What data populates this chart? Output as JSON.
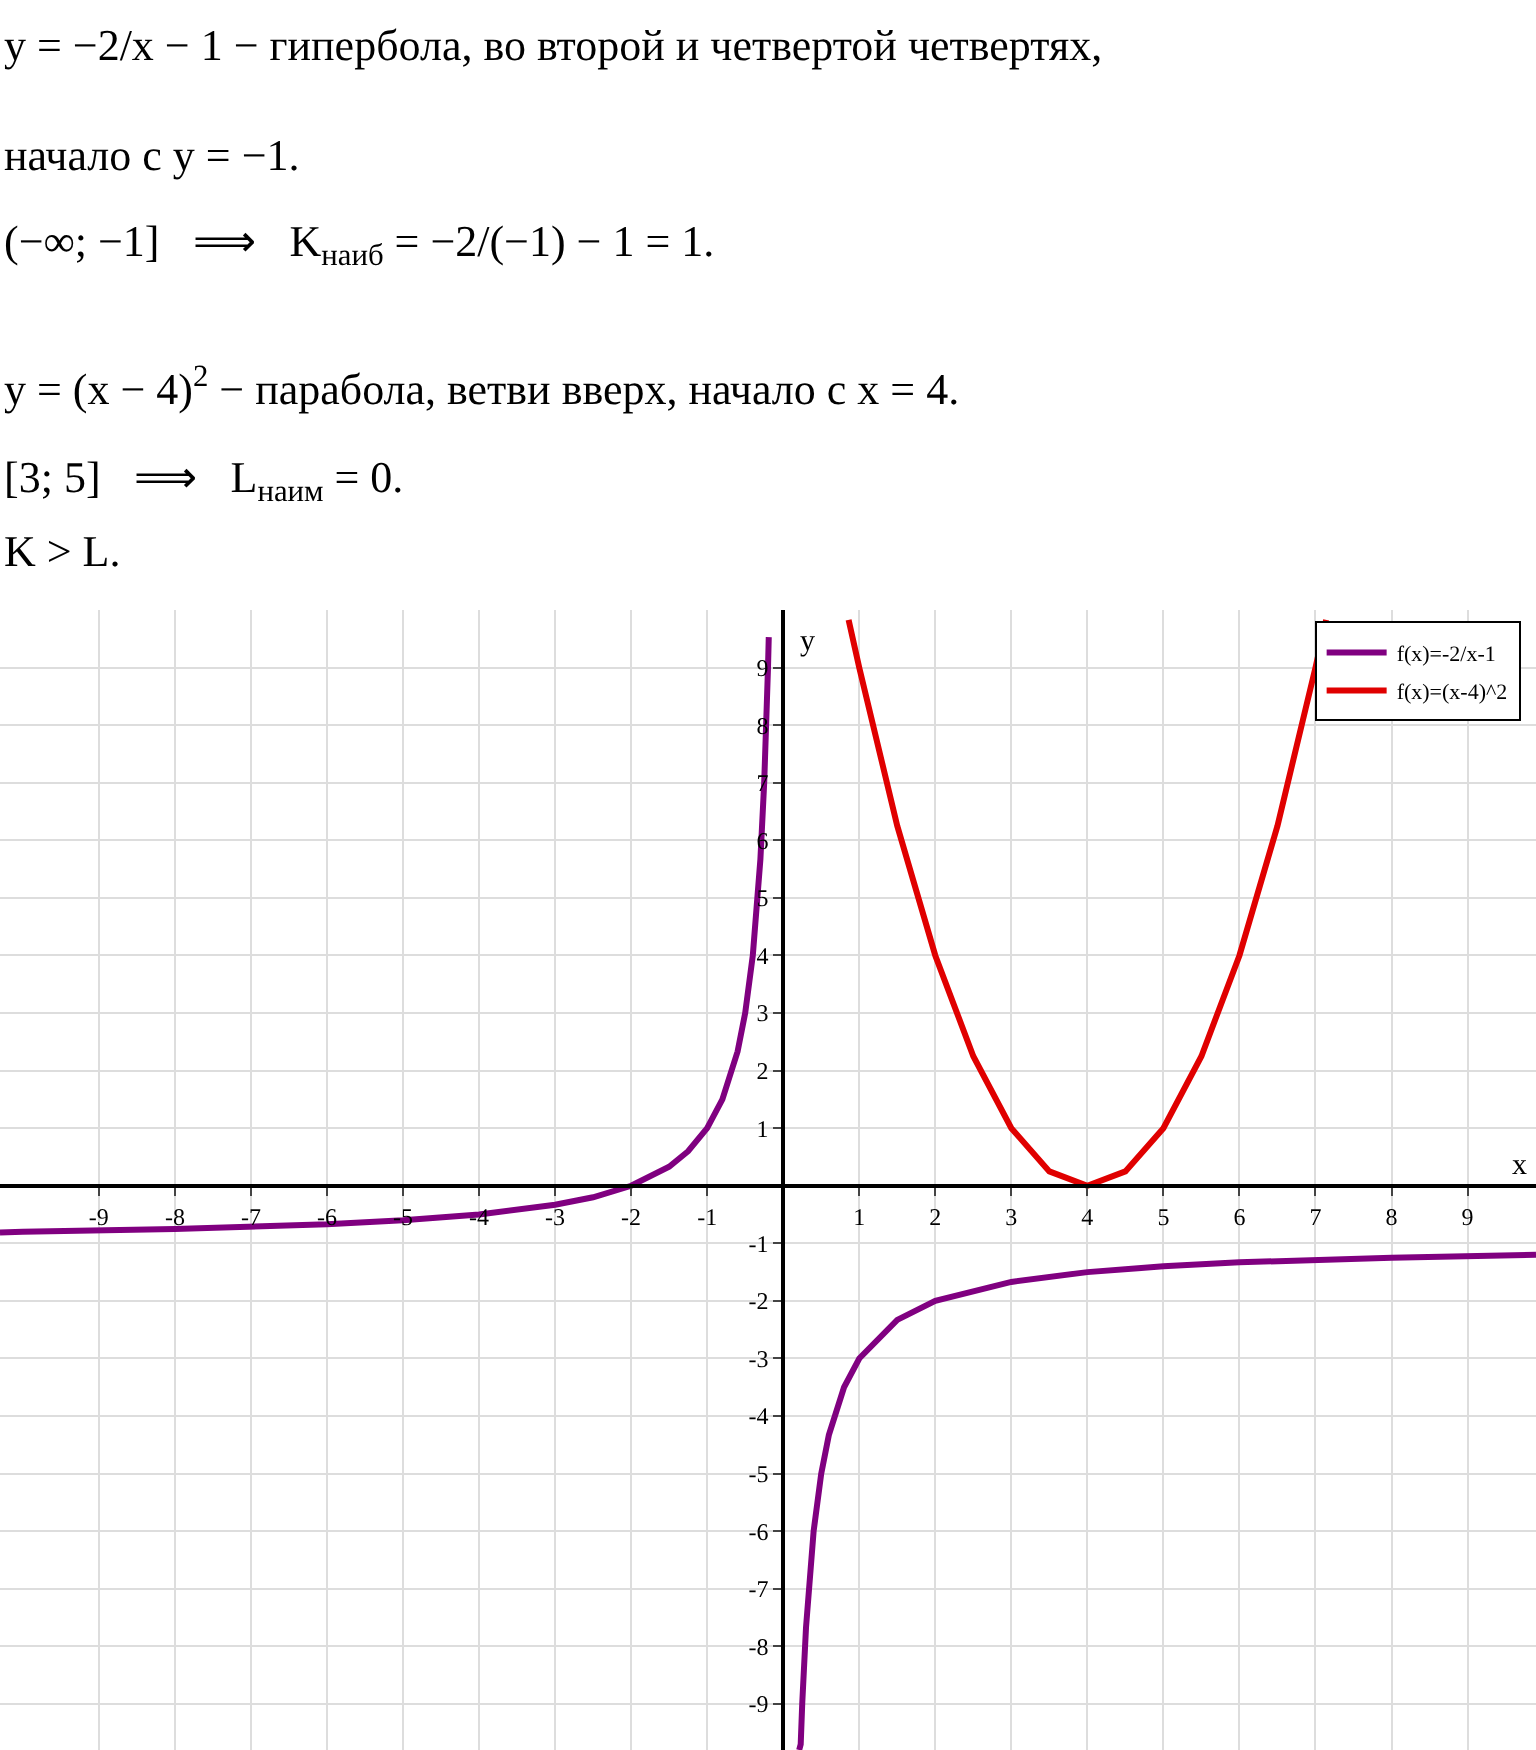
{
  "chart_data": {
    "type": "line",
    "annotations": [
      "y = −2/x − 1 − гипербола, во второй и четвертой четвертях,",
      "начало с y = −1.",
      "(−∞; −1]   ⟹   K$_{наиб}$ = −2/(−1) − 1 = 1.",
      "y = (x − 4)$^{2}$ − парабола, ветви вверх, начало с x = 4.",
      "[3; 5]   ⟹   L$_{наим}$ = 0.",
      "K > L."
    ],
    "xlabel": "x",
    "ylabel": "y",
    "series": [
      {
        "name": "f(x)=-2/x-1",
        "color": "#800080",
        "x": [
          -10.3,
          -10,
          -8,
          -6,
          -5,
          -4,
          -3,
          -2.5,
          -2,
          -1.5,
          -1.25,
          -1,
          -0.8,
          -0.6,
          -0.5,
          -0.4,
          -0.3,
          -0.25,
          -0.2,
          -0.19,
          null,
          0.21,
          0.23,
          0.25,
          0.3,
          0.4,
          0.5,
          0.6,
          0.8,
          1,
          1.5,
          2,
          3,
          4,
          5,
          6,
          8,
          9.9
        ],
        "values": [
          -0.81,
          -0.8,
          -0.75,
          -0.67,
          -0.6,
          -0.5,
          -0.33,
          -0.2,
          0,
          0.33,
          0.6,
          1,
          1.5,
          2.33,
          3,
          4,
          5.67,
          7,
          9,
          9.53,
          null,
          -9.8,
          -9.7,
          -9,
          -7.67,
          -6,
          -5,
          -4.33,
          -3.5,
          -3,
          -2.33,
          -2,
          -1.67,
          -1.5,
          -1.4,
          -1.33,
          -1.25,
          -1.2
        ]
      },
      {
        "name": "f(x)=(x-4)^2",
        "color": "#e00000",
        "x": [
          0.86,
          1,
          1.5,
          2,
          2.5,
          3,
          3.5,
          4,
          4.5,
          5,
          5.5,
          6,
          6.5,
          7,
          7.14
        ],
        "values": [
          9.83,
          9,
          6.25,
          4,
          2.25,
          1,
          0.25,
          0,
          0.25,
          1,
          2.25,
          4,
          6.25,
          9,
          9.83
        ]
      }
    ],
    "xlim": [
      -10.3,
      9.9
    ],
    "ylim": [
      -9.8,
      10
    ],
    "xticks": [
      -9,
      -8,
      -7,
      -6,
      -5,
      -4,
      -3,
      -2,
      -1,
      1,
      2,
      3,
      4,
      5,
      6,
      7,
      8,
      9
    ],
    "yticks": [
      -9,
      -8,
      -7,
      -6,
      -5,
      -4,
      -3,
      -2,
      -1,
      1,
      2,
      3,
      4,
      5,
      6,
      7,
      8,
      9
    ],
    "grid": true,
    "legend": "top right",
    "marker": "none",
    "line_style": "solid"
  }
}
